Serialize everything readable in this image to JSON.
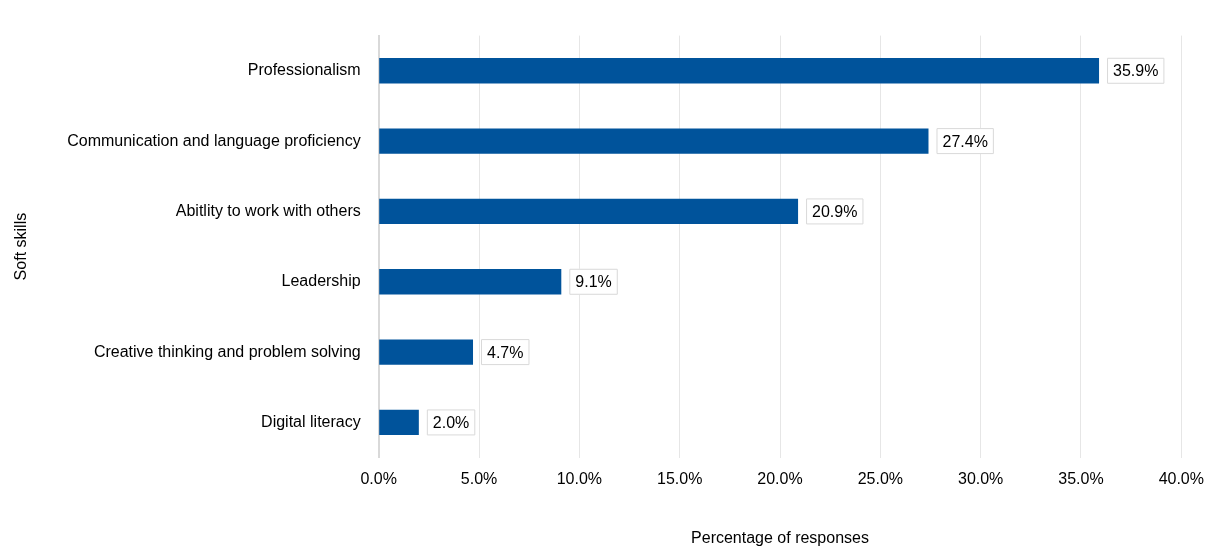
{
  "chart_data": {
    "type": "bar",
    "orientation": "horizontal",
    "xlabel": "Percentage of responses",
    "ylabel": "Soft skills",
    "categories": [
      "Professionalism",
      "Communication and language proficiency",
      "Abitlity to work with others",
      "Leadership",
      "Creative thinking and problem solving",
      "Digital literacy"
    ],
    "values": [
      35.9,
      27.4,
      20.9,
      9.1,
      4.7,
      2.0
    ],
    "value_labels": [
      "35.9%",
      "27.4%",
      "20.9%",
      "9.1%",
      "4.7%",
      "2.0%"
    ],
    "color": "#00539b",
    "xlim": [
      0,
      40
    ],
    "xticks": [
      {
        "value": 0,
        "label": "0.0%"
      },
      {
        "value": 5,
        "label": "5.0%"
      },
      {
        "value": 10,
        "label": "10.0%"
      },
      {
        "value": 15,
        "label": "15.0%"
      },
      {
        "value": 20,
        "label": "20.0%"
      },
      {
        "value": 25,
        "label": "25.0%"
      },
      {
        "value": 30,
        "label": "30.0%"
      },
      {
        "value": 35,
        "label": "35.0%"
      },
      {
        "value": 40,
        "label": "40.0%"
      }
    ],
    "grid": "x"
  }
}
